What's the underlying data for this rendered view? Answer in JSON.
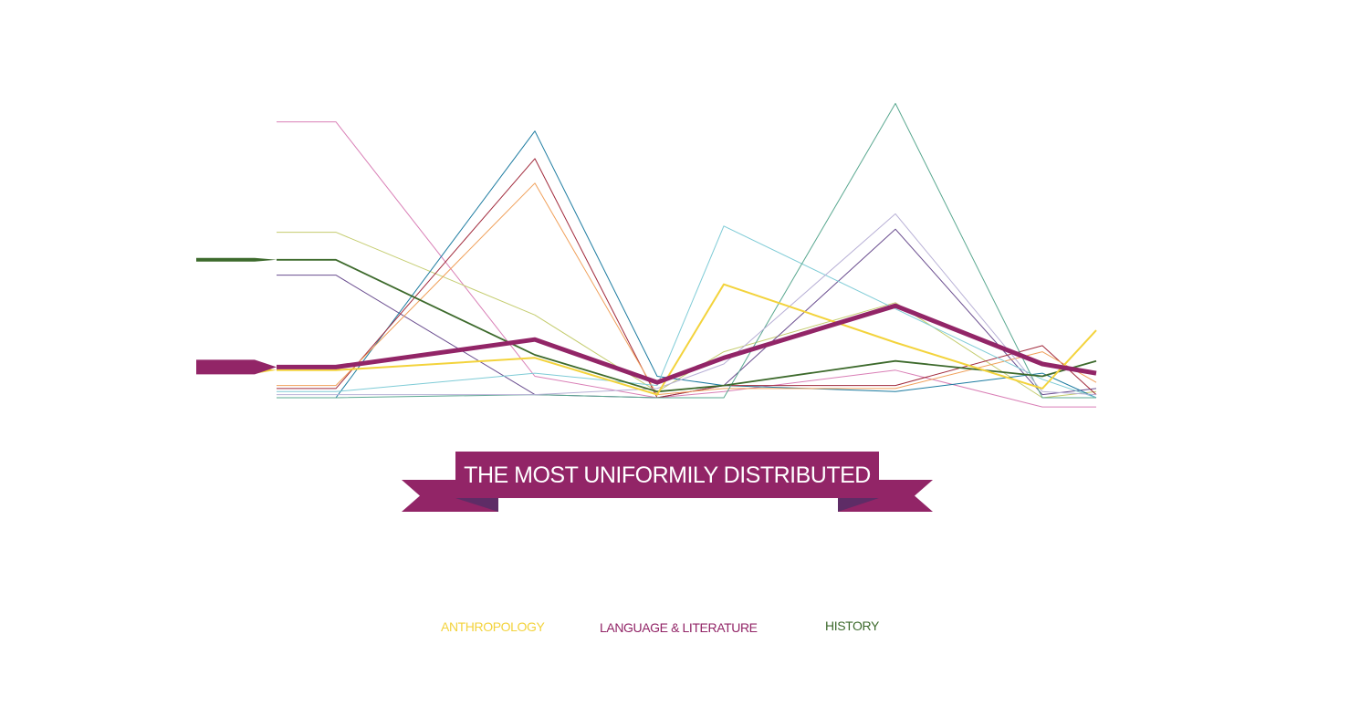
{
  "chart_data": {
    "type": "line",
    "title": "",
    "xlabel": "",
    "ylabel": "",
    "ylim": [
      0,
      100
    ],
    "grid": true,
    "x": [
      0,
      1,
      2,
      3,
      4,
      5,
      6
    ],
    "series": [
      {
        "name": "",
        "color": "#d97fb6",
        "width": 1,
        "values": [
          90,
          7,
          0,
          2,
          9,
          -3,
          -3
        ]
      },
      {
        "name": "",
        "color": "#c4cc6e",
        "width": 1,
        "values": [
          54,
          27,
          2,
          15,
          31,
          0,
          2
        ]
      },
      {
        "name": "",
        "color": "#6a4d8f",
        "width": 1,
        "values": [
          40,
          1,
          0,
          4,
          55,
          1,
          3
        ]
      },
      {
        "name": "",
        "color": "#1c7ba0",
        "width": 1,
        "values": [
          0,
          87,
          7,
          4,
          2,
          8,
          0
        ]
      },
      {
        "name": "",
        "color": "#a12a3c",
        "width": 1,
        "values": [
          3,
          78,
          0,
          4,
          4,
          17,
          1
        ]
      },
      {
        "name": "",
        "color": "#f0a05a",
        "width": 1,
        "values": [
          4,
          70,
          1,
          3,
          3,
          15,
          5
        ]
      },
      {
        "name": "",
        "color": "#7ecbd6",
        "width": 1,
        "values": [
          2,
          8,
          4,
          56,
          29,
          6,
          0
        ]
      },
      {
        "name": "",
        "color": "#5aa890",
        "width": 1,
        "values": [
          0,
          1,
          0,
          0,
          96,
          0,
          0
        ]
      },
      {
        "name": "",
        "color": "#b8b0d6",
        "width": 1,
        "values": [
          1,
          1,
          3,
          11,
          60,
          2,
          1
        ]
      },
      {
        "name": "HISTORY",
        "color": "#3d6a2c",
        "width": 1.8,
        "values": [
          45,
          14,
          2,
          4,
          12,
          7,
          12
        ]
      },
      {
        "name": "ANTHROPOLOGY",
        "color": "#f3d33c",
        "width": 2,
        "values": [
          9,
          13,
          1,
          37,
          18,
          3,
          22
        ]
      },
      {
        "name": "LANGUAGE & LITERATURE",
        "color": "#922567",
        "width": 5,
        "values": [
          10,
          19,
          5,
          13,
          30,
          11,
          8
        ]
      }
    ]
  },
  "banner": {
    "text": "THE MOST UNIFORMILY DISTRIBUTED",
    "color": "#922567",
    "fold_color": "#5e2c66"
  },
  "legend": {
    "anthropology": {
      "label": "ANTHROPOLOGY",
      "color": "#f3d33c"
    },
    "language": {
      "label": "LANGUAGE & LITERATURE",
      "color": "#922567"
    },
    "history": {
      "label": "HISTORY",
      "color": "#3d6a2c"
    }
  }
}
